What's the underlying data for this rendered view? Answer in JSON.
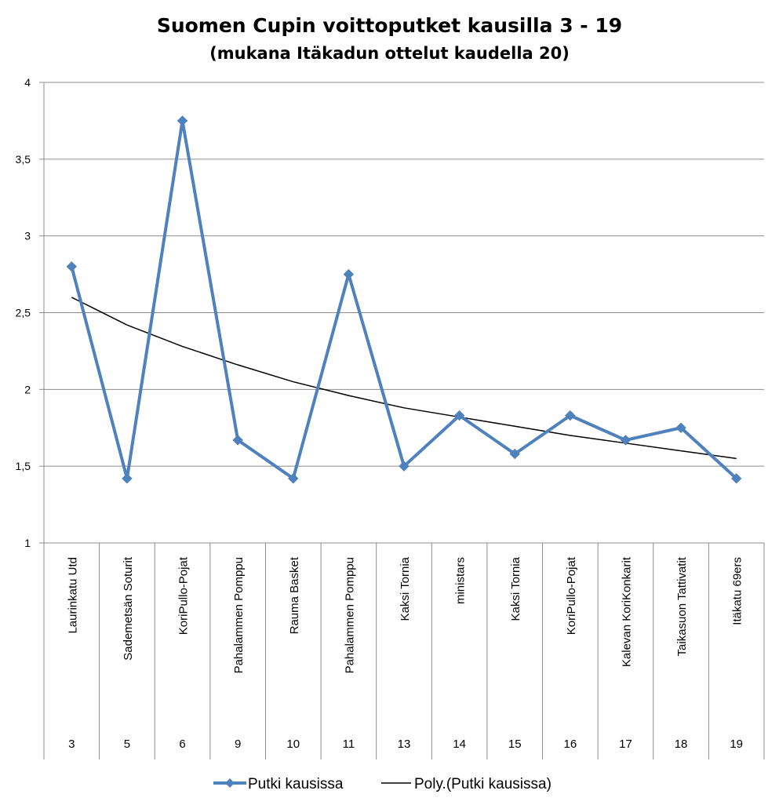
{
  "chart_data": {
    "type": "line",
    "title": "Suomen Cupin voittoputket kausilla 3 - 19",
    "subtitle": "(mukana Itäkadun ottelut kaudella 20)",
    "xlabel": "",
    "ylabel": "",
    "ylim": [
      1,
      4
    ],
    "yticks": [
      1,
      1.5,
      2,
      2.5,
      3,
      3.5,
      4
    ],
    "ytick_labels": [
      "1",
      "1,5",
      "2",
      "2,5",
      "3",
      "3,5",
      "4"
    ],
    "grid": true,
    "legend_position": "bottom",
    "categories": [
      {
        "team": "Laurinkatu Utd",
        "season": "3"
      },
      {
        "team": "Sademetsän Soturit",
        "season": "5"
      },
      {
        "team": "KoriPullo-Pojat",
        "season": "6"
      },
      {
        "team": "Pahalammen Pomppu",
        "season": "9"
      },
      {
        "team": "Rauma Basket",
        "season": "10"
      },
      {
        "team": "Pahalammen Pomppu",
        "season": "11"
      },
      {
        "team": "Kaksi Tornia",
        "season": "13"
      },
      {
        "team": "ministars",
        "season": "14"
      },
      {
        "team": "Kaksi Tornia",
        "season": "15"
      },
      {
        "team": "KoriPullo-Pojat",
        "season": "16"
      },
      {
        "team": "Kalevan KoriKonkarit",
        "season": "17"
      },
      {
        "team": "Taikasuon Tattivatit",
        "season": "18"
      },
      {
        "team": "Itäkatu 69ers",
        "season": "19"
      }
    ],
    "series": [
      {
        "name": "Putki kausissa",
        "color": "#4f81bd",
        "marker": "diamond",
        "values": [
          2.8,
          1.42,
          3.75,
          1.67,
          1.42,
          2.75,
          1.5,
          1.83,
          1.58,
          1.83,
          1.67,
          1.75,
          1.42
        ]
      },
      {
        "name": "Poly.(Putki kausissa)",
        "color": "#000000",
        "trendline": true,
        "values": [
          2.6,
          2.42,
          2.28,
          2.16,
          2.05,
          1.96,
          1.88,
          1.82,
          1.76,
          1.7,
          1.65,
          1.6,
          1.55
        ]
      }
    ]
  }
}
